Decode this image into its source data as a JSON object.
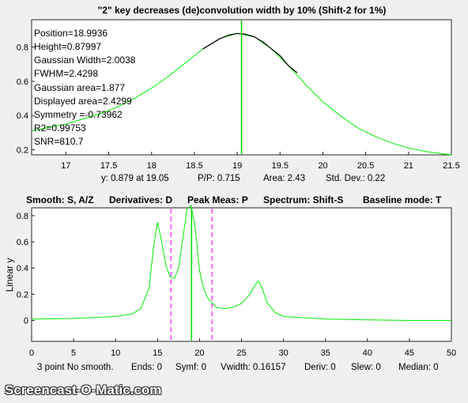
{
  "top_panel": {
    "title": "\"2\" key decreases (de)convolution width by 10% (Shift-2 for 1%)",
    "annotations": [
      "Position=18.9936",
      "Height=0.87997",
      "Gaussian Width=2.0038",
      "FWHM=2.4298",
      "Gaussian area=1.877",
      "Displayed area=2.4299",
      "Symmetry =-0.73962",
      "R2=0.99753",
      "SNR=810.7"
    ],
    "status": {
      "y_at": "y: 0.879 at 19.05",
      "pp": "P/P: 0.715",
      "area": "Area: 2.43",
      "stddev": "Std. Dev.: 0.22"
    }
  },
  "bottom_panel": {
    "menu": {
      "smooth": "Smooth: S, A/Z",
      "derivatives": "Derivatives: D",
      "peak_meas": "Peak Meas: P",
      "spectrum": "Spectrum: Shift-S",
      "baseline": "Baseline mode: T"
    },
    "status": {
      "smooth_info": "3 point No smooth.",
      "ends": "Ends: 0",
      "symf": "Symf: 0",
      "vwidth": "Vwidth: 0.16157",
      "deriv": "Deriv: 0",
      "slew": "Slew: 0",
      "median": "Median: 0"
    }
  },
  "watermark": "Screencast-O-Matic.com",
  "chart_data": [
    {
      "type": "line",
      "title": "\"2\" key decreases (de)convolution width by 10% (Shift-2 for 1%)",
      "xlim": [
        16.6,
        21.5
      ],
      "ylim": [
        0.17,
        0.96
      ],
      "xticks": [
        17,
        17.5,
        18,
        18.5,
        19,
        19.5,
        20,
        20.5,
        21,
        21.5
      ],
      "yticks": [
        0.2,
        0.4,
        0.6,
        0.8
      ],
      "grid": false,
      "colors": {
        "signal": "#00ee00",
        "fit": "#000000",
        "marker": "#00dd00"
      },
      "series": [
        {
          "role": "signal",
          "peak_x": 18.9936,
          "peak_y": 0.87997,
          "x": [
            16.6,
            16.8,
            17.0,
            17.2,
            17.4,
            17.6,
            17.8,
            18.0,
            18.2,
            18.4,
            18.6,
            18.8,
            19.0,
            19.2,
            19.4,
            19.6,
            19.8,
            20.0,
            20.2,
            20.4,
            20.6,
            20.8,
            21.0,
            21.2,
            21.5
          ],
          "y": [
            0.31,
            0.33,
            0.35,
            0.38,
            0.41,
            0.45,
            0.5,
            0.56,
            0.63,
            0.71,
            0.79,
            0.85,
            0.88,
            0.86,
            0.79,
            0.69,
            0.58,
            0.48,
            0.4,
            0.33,
            0.28,
            0.24,
            0.21,
            0.19,
            0.17
          ]
        },
        {
          "role": "fit",
          "x": [
            18.6,
            18.7,
            18.8,
            18.9,
            19.0,
            19.1,
            19.2,
            19.3,
            19.4,
            19.5,
            19.6,
            19.7
          ],
          "y": [
            0.79,
            0.82,
            0.85,
            0.87,
            0.88,
            0.875,
            0.86,
            0.83,
            0.79,
            0.75,
            0.69,
            0.65
          ]
        }
      ],
      "vline_x": 19.05
    },
    {
      "type": "line",
      "ylabel": "Linear y",
      "xlim": [
        0,
        50
      ],
      "ylim": [
        -0.16,
        0.86
      ],
      "xticks": [
        0,
        5,
        10,
        15,
        20,
        25,
        30,
        35,
        40,
        45,
        50
      ],
      "yticks": [
        0,
        0.2,
        0.4,
        0.6,
        0.8
      ],
      "grid": false,
      "colors": {
        "signal": "#00ee00",
        "window": "#ff66ff",
        "marker": "#00dd00"
      },
      "series": [
        {
          "role": "signal",
          "x": [
            0,
            5,
            10,
            12,
            13,
            14,
            14.5,
            15,
            15.5,
            16,
            16.5,
            17,
            17.5,
            18,
            18.5,
            19,
            19.5,
            20,
            20.5,
            21,
            22,
            23,
            24,
            25,
            26,
            26.5,
            27,
            27.5,
            28,
            29,
            30,
            35,
            40,
            45,
            50
          ],
          "y": [
            0.01,
            0.015,
            0.03,
            0.05,
            0.09,
            0.25,
            0.55,
            0.75,
            0.6,
            0.42,
            0.33,
            0.32,
            0.4,
            0.62,
            0.85,
            0.88,
            0.7,
            0.38,
            0.24,
            0.17,
            0.1,
            0.09,
            0.1,
            0.13,
            0.2,
            0.26,
            0.3,
            0.24,
            0.14,
            0.06,
            0.03,
            0.01,
            0.005,
            0.0,
            0.0
          ]
        }
      ],
      "window_x": [
        16.6,
        21.5
      ],
      "vline_x": 19.05
    }
  ]
}
